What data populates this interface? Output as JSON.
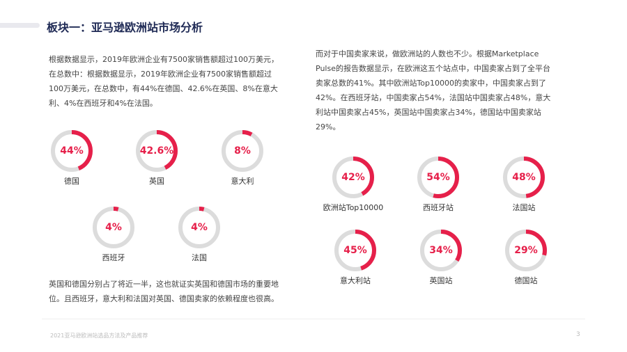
{
  "title": "板块一：亚马逊欧洲站市场分析",
  "left_paragraph": "根据数据显示，2019年欧洲企业有7500家销售额超过100万美元，在总数中：根据数据显示，2019年欧洲企业有7500家销售额超过100万美元，在总数中，有44%在德国、42.6%在英国、8%在意大利、4%在西班牙和4%在法国。",
  "right_paragraph": "而对于中国卖家来说，做欧洲站的人数也不少。根据Marketplace Pulse的报告数据显示，在欧洲这五个站点中，中国卖家占到了全平台卖家总数的41%。其中欧洲站Top10000的卖家中，中国卖家占到了42%。在西班牙站，中国卖家占54%，法国站中国卖家占48%，意大利站中国卖家占45%，英国站中国卖家占34%，德国站中国卖家站29%。",
  "bottom_paragraph": "英国和德国分别占了将近一半，这也就证实英国和德国市场的重要地位。且西班牙，意大利和法国对英国、德国卖家的依赖程度也很高。",
  "colors": {
    "accent": "#e6204a",
    "track": "#dcdcdc",
    "title": "#1f2a55"
  },
  "left_gauges": [
    {
      "value": 44,
      "pct": "44%",
      "label": "德国"
    },
    {
      "value": 42.6,
      "pct": "42.6%",
      "label": "英国"
    },
    {
      "value": 8,
      "pct": "8%",
      "label": "意大利"
    },
    {
      "value": 4,
      "pct": "4%",
      "label": "西班牙"
    },
    {
      "value": 4,
      "pct": "4%",
      "label": "法国"
    }
  ],
  "right_gauges": [
    {
      "value": 42,
      "pct": "42%",
      "label": "欧洲站Top10000"
    },
    {
      "value": 54,
      "pct": "54%",
      "label": "西班牙站"
    },
    {
      "value": 48,
      "pct": "48%",
      "label": "法国站"
    },
    {
      "value": 45,
      "pct": "45%",
      "label": "意大利站"
    },
    {
      "value": 34,
      "pct": "34%",
      "label": "英国站"
    },
    {
      "value": 29,
      "pct": "29%",
      "label": "德国站"
    }
  ],
  "footer": {
    "text": "2021亚马逊欧洲站选品方法及产品推荐",
    "page": "3"
  }
}
